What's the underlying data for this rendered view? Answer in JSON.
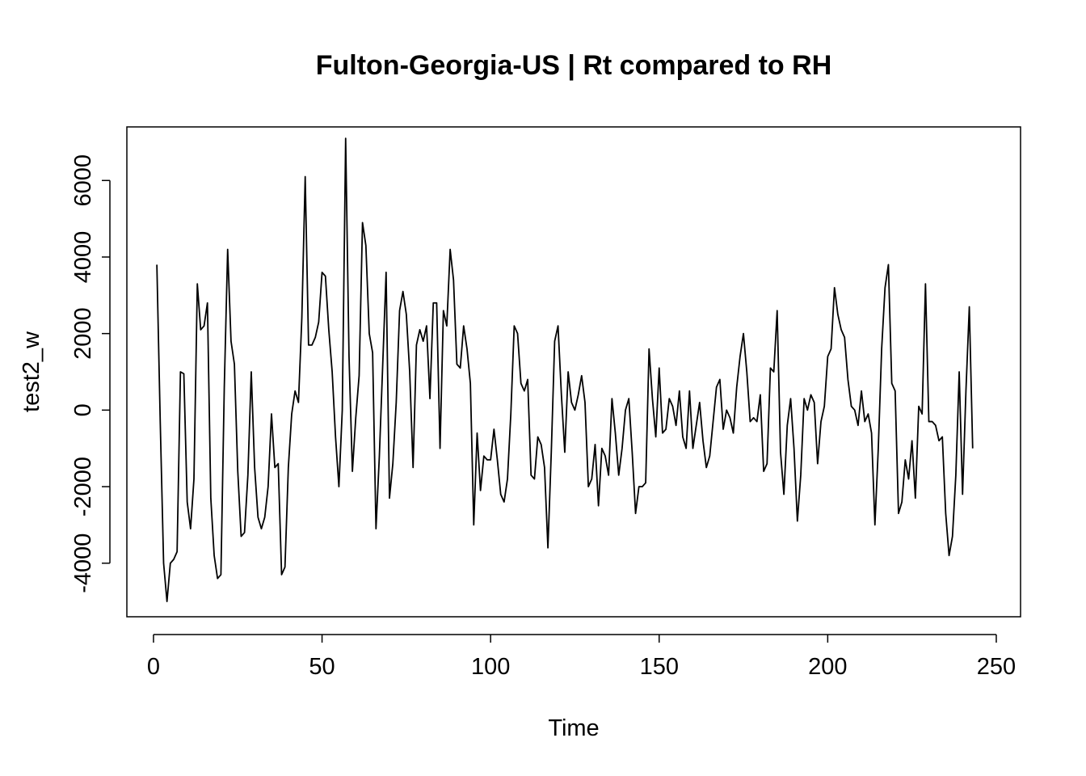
{
  "chart_data": {
    "type": "line",
    "title": "Fulton-Georgia-US | Rt compared to RH",
    "xlabel": "Time",
    "ylabel": "test2_w",
    "xlim": [
      -7.9,
      257.2
    ],
    "ylim": [
      -5400,
      7400
    ],
    "xticks": [
      0,
      50,
      100,
      150,
      200,
      250
    ],
    "yticks": [
      -4000,
      2000,
      6000
    ],
    "yticks_minor": [
      -2000,
      0,
      4000
    ],
    "series": [
      {
        "values": [
          3800,
          -300,
          -4000,
          -5000,
          -4000,
          -3900,
          -3700,
          1000,
          950,
          -2400,
          -3100,
          -1800,
          3300,
          2100,
          2200,
          2800,
          -2300,
          -3800,
          -4400,
          -4300,
          600,
          4200,
          1800,
          1200,
          -1600,
          -3300,
          -3200,
          -1700,
          1000,
          -1500,
          -2800,
          -3100,
          -2800,
          -2000,
          -100,
          -1500,
          -1400,
          -4300,
          -4100,
          -1500,
          -100,
          500,
          200,
          2400,
          6100,
          1700,
          1700,
          1900,
          2300,
          3600,
          3500,
          2100,
          1000,
          -700,
          -2000,
          0,
          7100,
          1400,
          -1600,
          -200,
          900,
          4900,
          4300,
          2000,
          1500,
          -3100,
          -1200,
          1200,
          3600,
          -2300,
          -1400,
          200,
          2600,
          3100,
          2500,
          1000,
          -1500,
          1700,
          2100,
          1800,
          2200,
          300,
          2800,
          2800,
          -1000,
          2600,
          2200,
          4200,
          3400,
          1200,
          1100,
          2200,
          1600,
          700,
          -3000,
          -600,
          -2100,
          -1200,
          -1300,
          -1300,
          -500,
          -1300,
          -2200,
          -2400,
          -1800,
          -100,
          2200,
          2000,
          700,
          500,
          800,
          -1700,
          -1800,
          -700,
          -900,
          -1500,
          -3600,
          -1100,
          1800,
          2200,
          400,
          -1100,
          1000,
          200,
          0,
          400,
          900,
          200,
          -2000,
          -1800,
          -900,
          -2500,
          -1000,
          -1200,
          -1700,
          300,
          -600,
          -1700,
          -1000,
          0,
          300,
          -1100,
          -2700,
          -2000,
          -2000,
          -1900,
          1600,
          300,
          -700,
          1100,
          -600,
          -500,
          300,
          100,
          -400,
          500,
          -700,
          -1000,
          500,
          -1000,
          -400,
          200,
          -800,
          -1500,
          -1200,
          -300,
          600,
          800,
          -500,
          0,
          -200,
          -600,
          600,
          1400,
          2000,
          1000,
          -300,
          -200,
          -300,
          400,
          -1600,
          -1400,
          1100,
          1000,
          2600,
          -1100,
          -2200,
          -400,
          300,
          -1000,
          -2900,
          -1700,
          300,
          0,
          400,
          200,
          -1400,
          -300,
          100,
          1400,
          1600,
          3200,
          2500,
          2100,
          1900,
          800,
          100,
          0,
          -400,
          500,
          -300,
          -100,
          -600,
          -3000,
          -1000,
          1600,
          3200,
          3800,
          700,
          500,
          -2700,
          -2400,
          -1300,
          -1800,
          -800,
          -2300,
          100,
          -100,
          3300,
          -300,
          -300,
          -400,
          -800,
          -700,
          -2700,
          -3800,
          -3300,
          -1700,
          1000,
          -2200,
          500,
          2700,
          -1000
        ]
      }
    ]
  }
}
